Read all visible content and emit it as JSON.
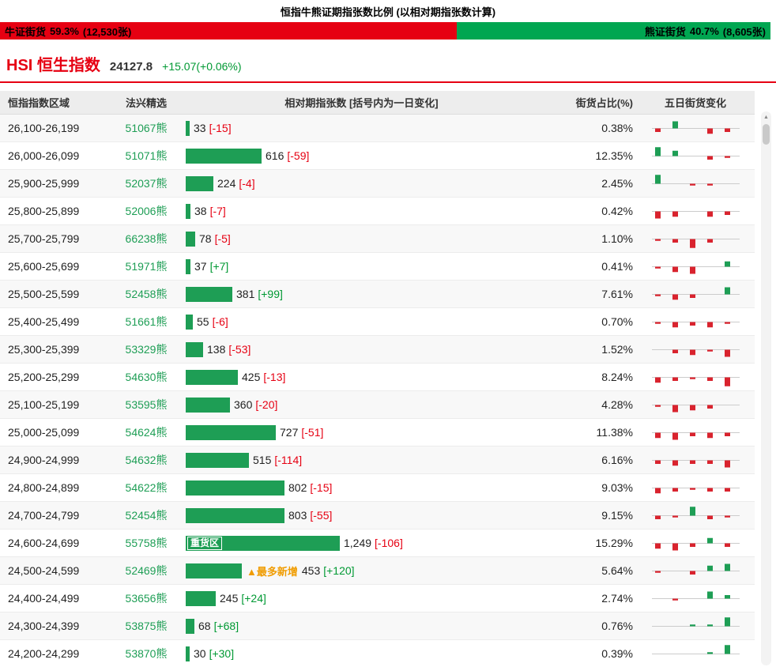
{
  "page_title": "恒指牛熊证期指张数比例 (以相对期指张数计算)",
  "colors": {
    "red": "#e60012",
    "green": "#009933",
    "ratio_red": "#e60012",
    "ratio_green": "#00a651",
    "bar_green": "#1e9e55",
    "spark_red": "#d9232e",
    "spark_green": "#1e9e55",
    "orange": "#f09c00"
  },
  "ratio_bar": {
    "bull_label": "牛证街货",
    "bull_pct": "59.3%",
    "bull_count": "(12,530张)",
    "bull_width_pct": 59.3,
    "bear_label": "熊证街货",
    "bear_pct": "40.7%",
    "bear_count": "(8,605张)"
  },
  "index_header": {
    "name": "HSI 恒生指数",
    "value": "24127.8",
    "change": "+15.07(+0.06%)"
  },
  "table": {
    "headers": [
      "恒指指数区域",
      "法兴精选",
      "相对期指张数 [括号内为一日变化]",
      "街货占比(%)",
      "五日街货变化"
    ],
    "tags": {
      "heavy": "重货区",
      "most_new": "▲最多新增"
    },
    "max_bar_value": 1249,
    "rows": [
      {
        "range": "26,100-26,199",
        "pick": "51067熊",
        "value": 33,
        "value_label": "33",
        "change": "[-15]",
        "pct": "0.38%",
        "spark": [
          -1,
          2,
          0,
          -1.5,
          -1
        ]
      },
      {
        "range": "26,000-26,099",
        "pick": "51071熊",
        "value": 616,
        "value_label": "616",
        "change": "[-59]",
        "pct": "12.35%",
        "spark": [
          2.5,
          1.5,
          0,
          -1,
          -0.5
        ]
      },
      {
        "range": "25,900-25,999",
        "pick": "52037熊",
        "value": 224,
        "value_label": "224",
        "change": "[-4]",
        "pct": "2.45%",
        "spark": [
          2.5,
          0,
          -0.5,
          -0.5,
          0
        ]
      },
      {
        "range": "25,800-25,899",
        "pick": "52006熊",
        "value": 38,
        "value_label": "38",
        "change": "[-7]",
        "pct": "0.42%",
        "spark": [
          -2,
          -1.5,
          0,
          -1.5,
          -1
        ]
      },
      {
        "range": "25,700-25,799",
        "pick": "66238熊",
        "value": 78,
        "value_label": "78",
        "change": "[-5]",
        "pct": "1.10%",
        "spark": [
          -0.5,
          -1,
          -2.5,
          -1,
          0
        ]
      },
      {
        "range": "25,600-25,699",
        "pick": "51971熊",
        "value": 37,
        "value_label": "37",
        "change": "[+7]",
        "pct": "0.41%",
        "spark": [
          -0.5,
          -1.5,
          -2,
          0,
          1.5
        ]
      },
      {
        "range": "25,500-25,599",
        "pick": "52458熊",
        "value": 381,
        "value_label": "381",
        "change": "[+99]",
        "pct": "7.61%",
        "spark": [
          -0.5,
          -1.5,
          -1,
          0,
          2
        ]
      },
      {
        "range": "25,400-25,499",
        "pick": "51661熊",
        "value": 55,
        "value_label": "55",
        "change": "[-6]",
        "pct": "0.70%",
        "spark": [
          -0.5,
          -1.5,
          -1,
          -1.5,
          -0.5
        ]
      },
      {
        "range": "25,300-25,399",
        "pick": "53329熊",
        "value": 138,
        "value_label": "138",
        "change": "[-53]",
        "pct": "1.52%",
        "spark": [
          0,
          -1,
          -1.5,
          -0.5,
          -2
        ]
      },
      {
        "range": "25,200-25,299",
        "pick": "54630熊",
        "value": 425,
        "value_label": "425",
        "change": "[-13]",
        "pct": "8.24%",
        "spark": [
          -1.5,
          -1,
          -0.5,
          -1,
          -2.5
        ]
      },
      {
        "range": "25,100-25,199",
        "pick": "53595熊",
        "value": 360,
        "value_label": "360",
        "change": "[-20]",
        "pct": "4.28%",
        "spark": [
          -0.5,
          -2,
          -1.5,
          -1,
          0
        ]
      },
      {
        "range": "25,000-25,099",
        "pick": "54624熊",
        "value": 727,
        "value_label": "727",
        "change": "[-51]",
        "pct": "11.38%",
        "spark": [
          -1.5,
          -2,
          -1,
          -1.5,
          -1
        ]
      },
      {
        "range": "24,900-24,999",
        "pick": "54632熊",
        "value": 515,
        "value_label": "515",
        "change": "[-114]",
        "pct": "6.16%",
        "spark": [
          -1,
          -1.5,
          -1,
          -1,
          -2
        ]
      },
      {
        "range": "24,800-24,899",
        "pick": "54622熊",
        "value": 802,
        "value_label": "802",
        "change": "[-15]",
        "pct": "9.03%",
        "spark": [
          -1.5,
          -1,
          -0.5,
          -1,
          -1
        ]
      },
      {
        "range": "24,700-24,799",
        "pick": "52454熊",
        "value": 803,
        "value_label": "803",
        "change": "[-55]",
        "pct": "9.15%",
        "spark": [
          -1,
          -0.5,
          2.5,
          -1,
          -0.5
        ]
      },
      {
        "range": "24,600-24,699",
        "pick": "55758熊",
        "value": 1249,
        "value_label": "1,249",
        "change": "[-106]",
        "pct": "15.29%",
        "tag": "heavy",
        "spark": [
          -1.5,
          -2,
          -1,
          1.5,
          -1
        ]
      },
      {
        "range": "24,500-24,599",
        "pick": "52469熊",
        "value": 453,
        "value_label": "453",
        "change": "[+120]",
        "pct": "5.64%",
        "tag": "most_new",
        "spark": [
          -0.5,
          0,
          -1,
          1.5,
          2
        ]
      },
      {
        "range": "24,400-24,499",
        "pick": "53656熊",
        "value": 245,
        "value_label": "245",
        "change": "[+24]",
        "pct": "2.74%",
        "spark": [
          0,
          -0.5,
          0,
          2,
          1
        ]
      },
      {
        "range": "24,300-24,399",
        "pick": "53875熊",
        "value": 68,
        "value_label": "68",
        "change": "[+68]",
        "pct": "0.76%",
        "spark": [
          0,
          0,
          0.5,
          0.5,
          2.5
        ]
      },
      {
        "range": "24,200-24,299",
        "pick": "53870熊",
        "value": 30,
        "value_label": "30",
        "change": "[+30]",
        "pct": "0.39%",
        "spark": [
          0,
          0,
          0,
          0.5,
          2.5
        ]
      }
    ]
  }
}
